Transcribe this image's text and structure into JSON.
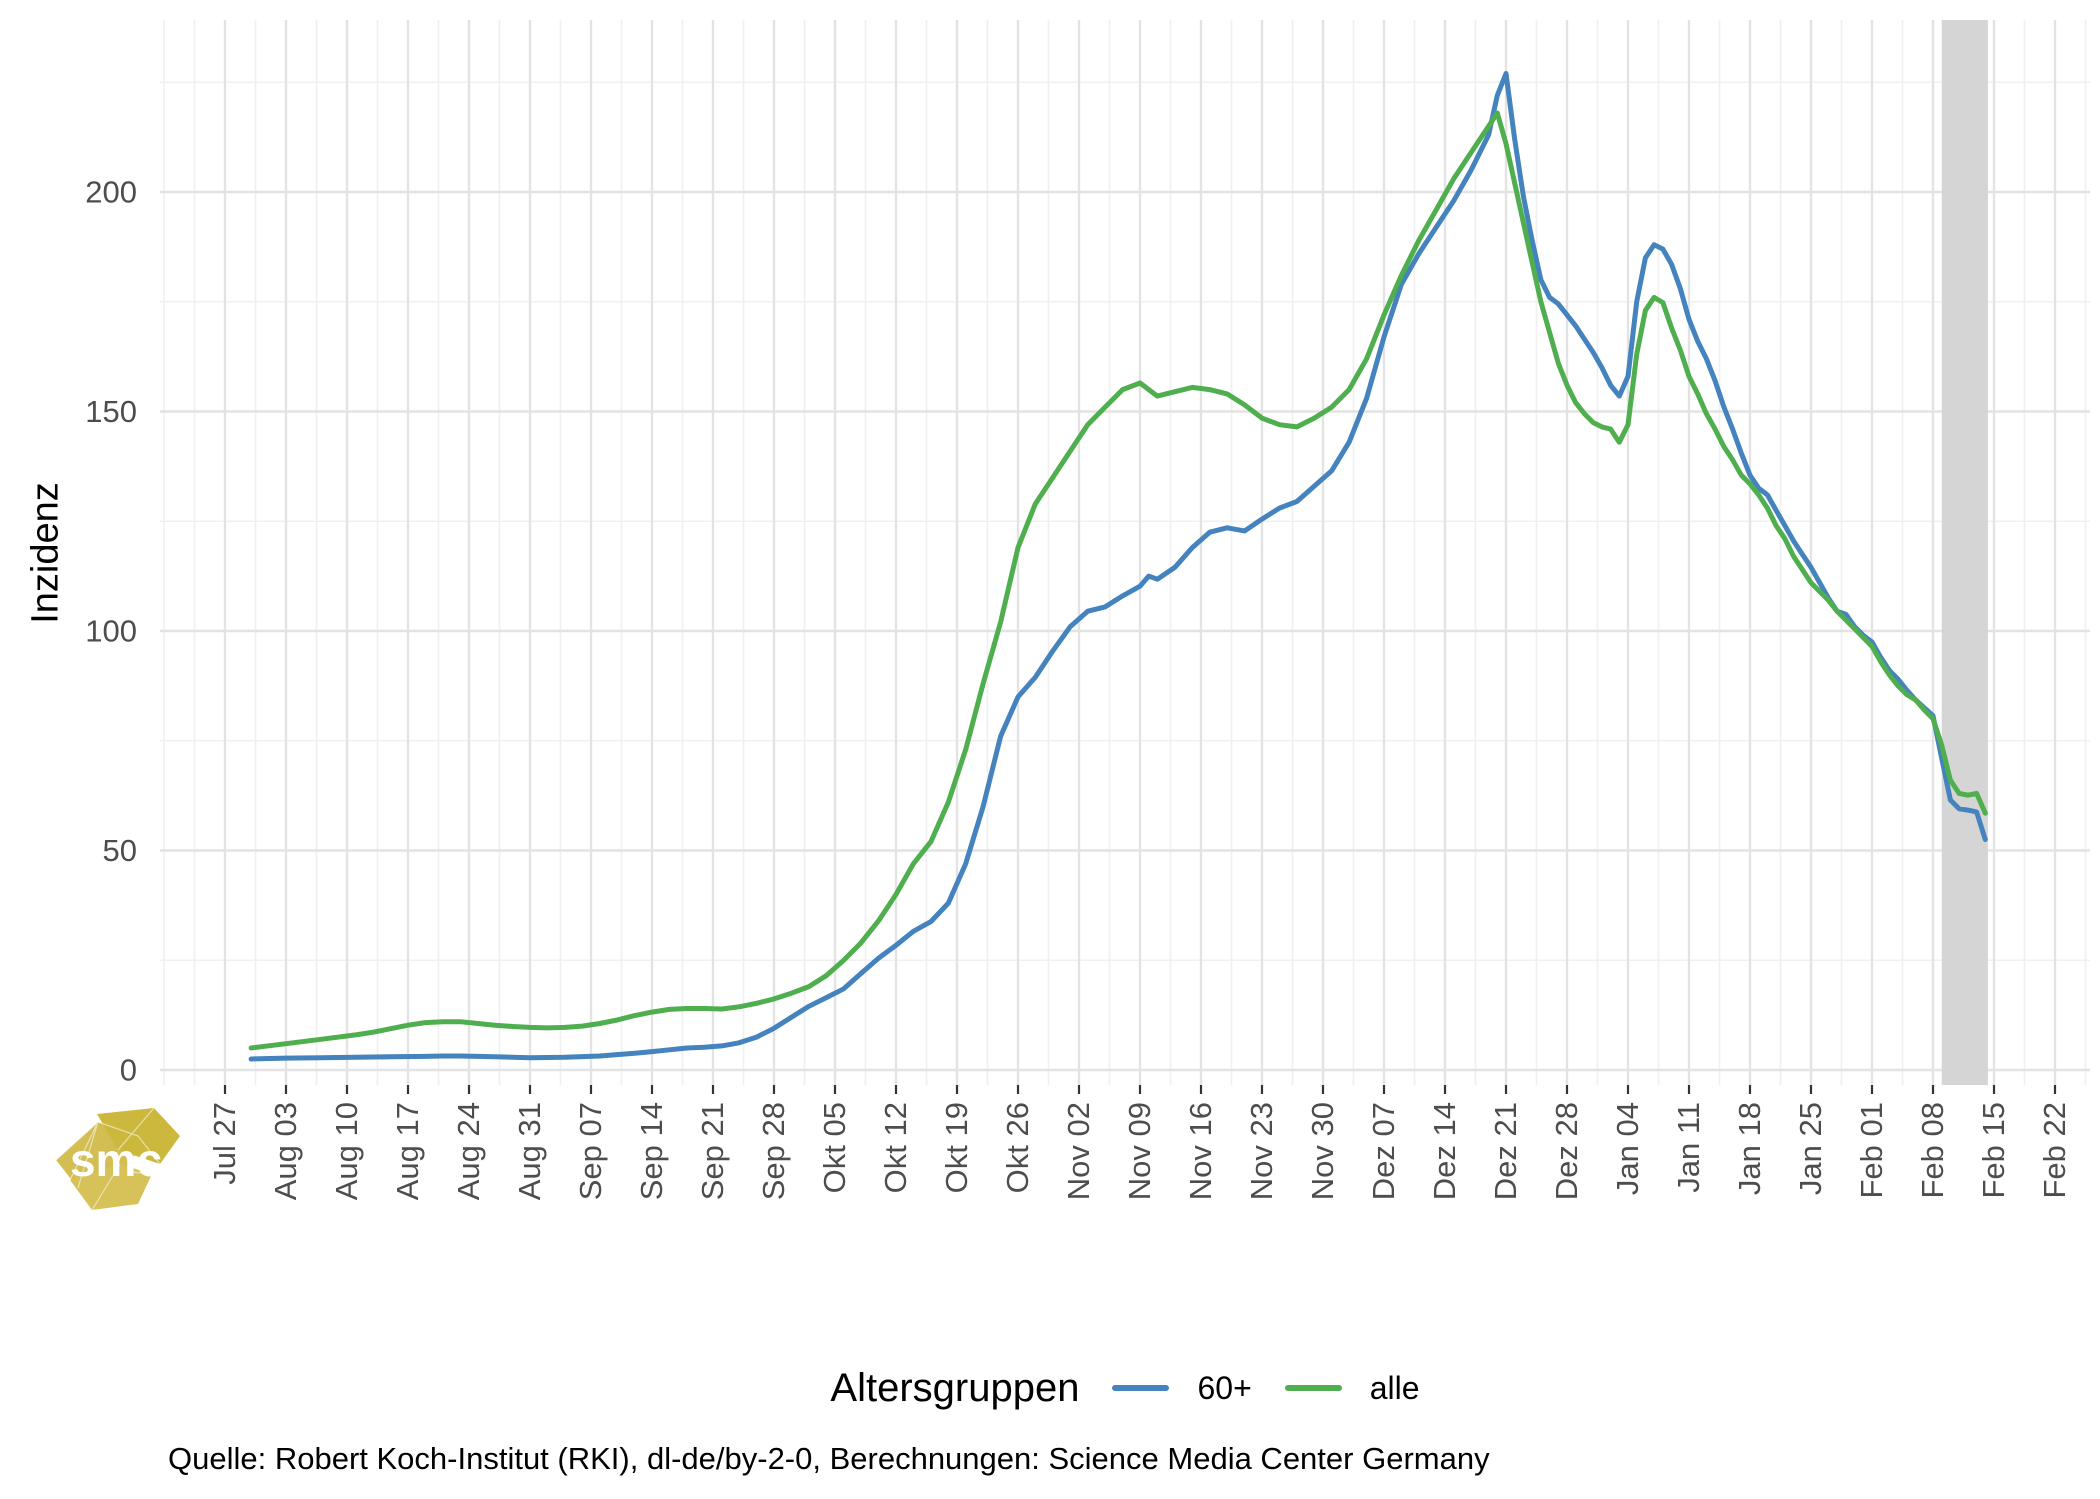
{
  "chart_data": {
    "type": "line",
    "title": "",
    "xlabel": "",
    "ylabel": "Inzidenz",
    "legend_title": "Altersgruppen",
    "legend_position": "bottom",
    "grid": "on",
    "y_ticks": [
      0,
      50,
      100,
      150,
      200
    ],
    "y_minor_ticks": [
      25,
      75,
      125,
      175,
      225
    ],
    "ylim": [
      -3,
      239
    ],
    "x_unit": "days_since_first_tick",
    "x_tick_labels": [
      "Jul 27",
      "Aug 03",
      "Aug 10",
      "Aug 17",
      "Aug 24",
      "Aug 31",
      "Sep 07",
      "Sep 14",
      "Sep 21",
      "Sep 28",
      "Okt 05",
      "Okt 12",
      "Okt 19",
      "Okt 26",
      "Nov 02",
      "Nov 09",
      "Nov 16",
      "Nov 23",
      "Nov 30",
      "Dez 07",
      "Dez 14",
      "Dez 21",
      "Dez 28",
      "Jan 04",
      "Jan 11",
      "Jan 18",
      "Jan 25",
      "Feb 01",
      "Feb 08",
      "Feb 15",
      "Feb 22"
    ],
    "highlight_band": {
      "x_day_start": 197,
      "x_day_end": 202.3,
      "color": "#D5D5D5"
    },
    "axis_text_color": "#4D4D4D",
    "grid_major_color": "#E3E3E3",
    "grid_minor_color": "#F0F0F0",
    "series": [
      {
        "name": "60+",
        "color": "#4483BD",
        "points": [
          [
            3,
            2.5
          ],
          [
            7,
            2.7
          ],
          [
            11,
            2.8
          ],
          [
            15,
            2.9
          ],
          [
            19,
            3.0
          ],
          [
            23,
            3.1
          ],
          [
            25,
            3.2
          ],
          [
            27,
            3.2
          ],
          [
            31,
            3.0
          ],
          [
            35,
            2.8
          ],
          [
            39,
            2.9
          ],
          [
            43,
            3.2
          ],
          [
            45,
            3.5
          ],
          [
            47,
            3.8
          ],
          [
            49,
            4.2
          ],
          [
            51,
            4.6
          ],
          [
            53,
            5.0
          ],
          [
            55,
            5.2
          ],
          [
            57,
            5.5
          ],
          [
            59,
            6.2
          ],
          [
            61,
            7.5
          ],
          [
            63,
            9.5
          ],
          [
            65,
            12
          ],
          [
            67,
            14.5
          ],
          [
            69,
            16.5
          ],
          [
            71,
            18.5
          ],
          [
            73,
            22
          ],
          [
            75,
            25.5
          ],
          [
            77,
            28.4
          ],
          [
            79,
            31.6
          ],
          [
            81,
            33.8
          ],
          [
            83,
            38
          ],
          [
            85,
            47
          ],
          [
            87,
            60
          ],
          [
            89,
            76
          ],
          [
            91,
            85
          ],
          [
            93,
            89.5
          ],
          [
            95,
            95.5
          ],
          [
            97,
            101
          ],
          [
            99,
            104.5
          ],
          [
            101,
            105.5
          ],
          [
            103,
            108
          ],
          [
            105,
            110.2
          ],
          [
            106,
            112.5
          ],
          [
            107,
            111.8
          ],
          [
            109,
            114.5
          ],
          [
            111,
            119
          ],
          [
            113,
            122.5
          ],
          [
            115,
            123.5
          ],
          [
            117,
            122.8
          ],
          [
            119,
            125.5
          ],
          [
            121,
            128
          ],
          [
            123,
            129.5
          ],
          [
            125,
            133
          ],
          [
            127,
            136.5
          ],
          [
            129,
            143
          ],
          [
            131,
            153
          ],
          [
            133,
            167
          ],
          [
            135,
            179
          ],
          [
            137,
            186
          ],
          [
            139,
            192
          ],
          [
            141,
            198
          ],
          [
            143,
            205
          ],
          [
            145,
            213
          ],
          [
            146,
            222
          ],
          [
            147,
            227
          ],
          [
            148,
            212
          ],
          [
            149,
            199
          ],
          [
            150,
            189
          ],
          [
            151,
            180
          ],
          [
            152,
            176
          ],
          [
            153,
            174.5
          ],
          [
            154,
            172
          ],
          [
            155,
            169.5
          ],
          [
            156,
            166.5
          ],
          [
            157,
            163.5
          ],
          [
            158,
            160
          ],
          [
            159,
            156
          ],
          [
            160,
            153.5
          ],
          [
            161,
            158
          ],
          [
            162,
            175
          ],
          [
            163,
            185
          ],
          [
            164,
            188
          ],
          [
            165,
            187
          ],
          [
            166,
            183.5
          ],
          [
            167,
            178
          ],
          [
            168,
            171
          ],
          [
            169,
            166
          ],
          [
            170,
            162
          ],
          [
            171,
            157
          ],
          [
            172,
            151
          ],
          [
            173,
            146
          ],
          [
            174,
            140.5
          ],
          [
            175,
            135.5
          ],
          [
            176,
            132.5
          ],
          [
            177,
            131
          ],
          [
            178,
            127.5
          ],
          [
            179,
            124
          ],
          [
            180,
            120.5
          ],
          [
            181,
            117.5
          ],
          [
            182,
            114.5
          ],
          [
            184,
            107.5
          ],
          [
            185,
            104.5
          ],
          [
            186,
            103.8
          ],
          [
            187,
            101
          ],
          [
            188,
            99
          ],
          [
            189,
            97.5
          ],
          [
            190,
            94
          ],
          [
            191,
            91
          ],
          [
            192,
            89
          ],
          [
            193,
            86.5
          ],
          [
            194,
            84.3
          ],
          [
            195,
            82.5
          ],
          [
            196,
            80.7
          ],
          [
            197,
            71
          ],
          [
            198,
            61.5
          ],
          [
            199,
            59.5
          ],
          [
            200,
            59.2
          ],
          [
            201,
            58.8
          ],
          [
            202,
            52.5
          ]
        ]
      },
      {
        "name": "alle",
        "color": "#4FAE4D",
        "points": [
          [
            3,
            5
          ],
          [
            7,
            6
          ],
          [
            11,
            7
          ],
          [
            15,
            8
          ],
          [
            17,
            8.6
          ],
          [
            19,
            9.4
          ],
          [
            21,
            10.2
          ],
          [
            23,
            10.8
          ],
          [
            25,
            11
          ],
          [
            27,
            11
          ],
          [
            29,
            10.6
          ],
          [
            31,
            10.2
          ],
          [
            33,
            9.9
          ],
          [
            35,
            9.7
          ],
          [
            37,
            9.6
          ],
          [
            39,
            9.7
          ],
          [
            41,
            10
          ],
          [
            43,
            10.6
          ],
          [
            45,
            11.4
          ],
          [
            47,
            12.4
          ],
          [
            49,
            13.2
          ],
          [
            51,
            13.8
          ],
          [
            53,
            14
          ],
          [
            55,
            14
          ],
          [
            57,
            13.9
          ],
          [
            59,
            14.4
          ],
          [
            61,
            15.2
          ],
          [
            63,
            16.2
          ],
          [
            65,
            17.5
          ],
          [
            67,
            19
          ],
          [
            69,
            21.5
          ],
          [
            71,
            25
          ],
          [
            73,
            29
          ],
          [
            75,
            34
          ],
          [
            77,
            40
          ],
          [
            79,
            47
          ],
          [
            81,
            52
          ],
          [
            83,
            61
          ],
          [
            85,
            73
          ],
          [
            87,
            88
          ],
          [
            89,
            102
          ],
          [
            91,
            119
          ],
          [
            93,
            129
          ],
          [
            95,
            135
          ],
          [
            97,
            141
          ],
          [
            99,
            147
          ],
          [
            101,
            151
          ],
          [
            103,
            155
          ],
          [
            105,
            156.5
          ],
          [
            107,
            153.5
          ],
          [
            109,
            154.5
          ],
          [
            111,
            155.5
          ],
          [
            113,
            155
          ],
          [
            115,
            154
          ],
          [
            117,
            151.5
          ],
          [
            119,
            148.5
          ],
          [
            121,
            147
          ],
          [
            123,
            146.5
          ],
          [
            125,
            148.5
          ],
          [
            127,
            151
          ],
          [
            129,
            155
          ],
          [
            131,
            162
          ],
          [
            133,
            172
          ],
          [
            135,
            181
          ],
          [
            137,
            189
          ],
          [
            139,
            196
          ],
          [
            141,
            203
          ],
          [
            143,
            209
          ],
          [
            145,
            215
          ],
          [
            146,
            218
          ],
          [
            147,
            211
          ],
          [
            148,
            202
          ],
          [
            149,
            193
          ],
          [
            150,
            184
          ],
          [
            151,
            175
          ],
          [
            152,
            168
          ],
          [
            153,
            161
          ],
          [
            154,
            156
          ],
          [
            155,
            152
          ],
          [
            156,
            149.5
          ],
          [
            157,
            147.5
          ],
          [
            158,
            146.5
          ],
          [
            159,
            146
          ],
          [
            160,
            143
          ],
          [
            161,
            147
          ],
          [
            162,
            163
          ],
          [
            163,
            173
          ],
          [
            164,
            176
          ],
          [
            165,
            174.8
          ],
          [
            166,
            169
          ],
          [
            167,
            164
          ],
          [
            168,
            158
          ],
          [
            169,
            154
          ],
          [
            170,
            149.5
          ],
          [
            171,
            146
          ],
          [
            172,
            142
          ],
          [
            173,
            139
          ],
          [
            174,
            135.5
          ],
          [
            175,
            133.5
          ],
          [
            176,
            131
          ],
          [
            177,
            128
          ],
          [
            178,
            124
          ],
          [
            179,
            121
          ],
          [
            180,
            117
          ],
          [
            181,
            114
          ],
          [
            182,
            111
          ],
          [
            184,
            107
          ],
          [
            185,
            104.5
          ],
          [
            186,
            102.5
          ],
          [
            187,
            100.5
          ],
          [
            188,
            98.5
          ],
          [
            189,
            96.5
          ],
          [
            190,
            93
          ],
          [
            191,
            90
          ],
          [
            192,
            87.5
          ],
          [
            193,
            85.5
          ],
          [
            194,
            84.3
          ],
          [
            195,
            82
          ],
          [
            196,
            80
          ],
          [
            197,
            74
          ],
          [
            198,
            66
          ],
          [
            199,
            63
          ],
          [
            200,
            62.6
          ],
          [
            201,
            63
          ],
          [
            202,
            58.5
          ]
        ]
      }
    ]
  },
  "y_axis_title": "Inzidenz",
  "caption": "Quelle: Robert Koch-Institut (RKI), dl-de/by-2-0, Berechnungen: Science Media Center Germany",
  "logo": {
    "text": "smc",
    "color": "#D2BE52"
  }
}
